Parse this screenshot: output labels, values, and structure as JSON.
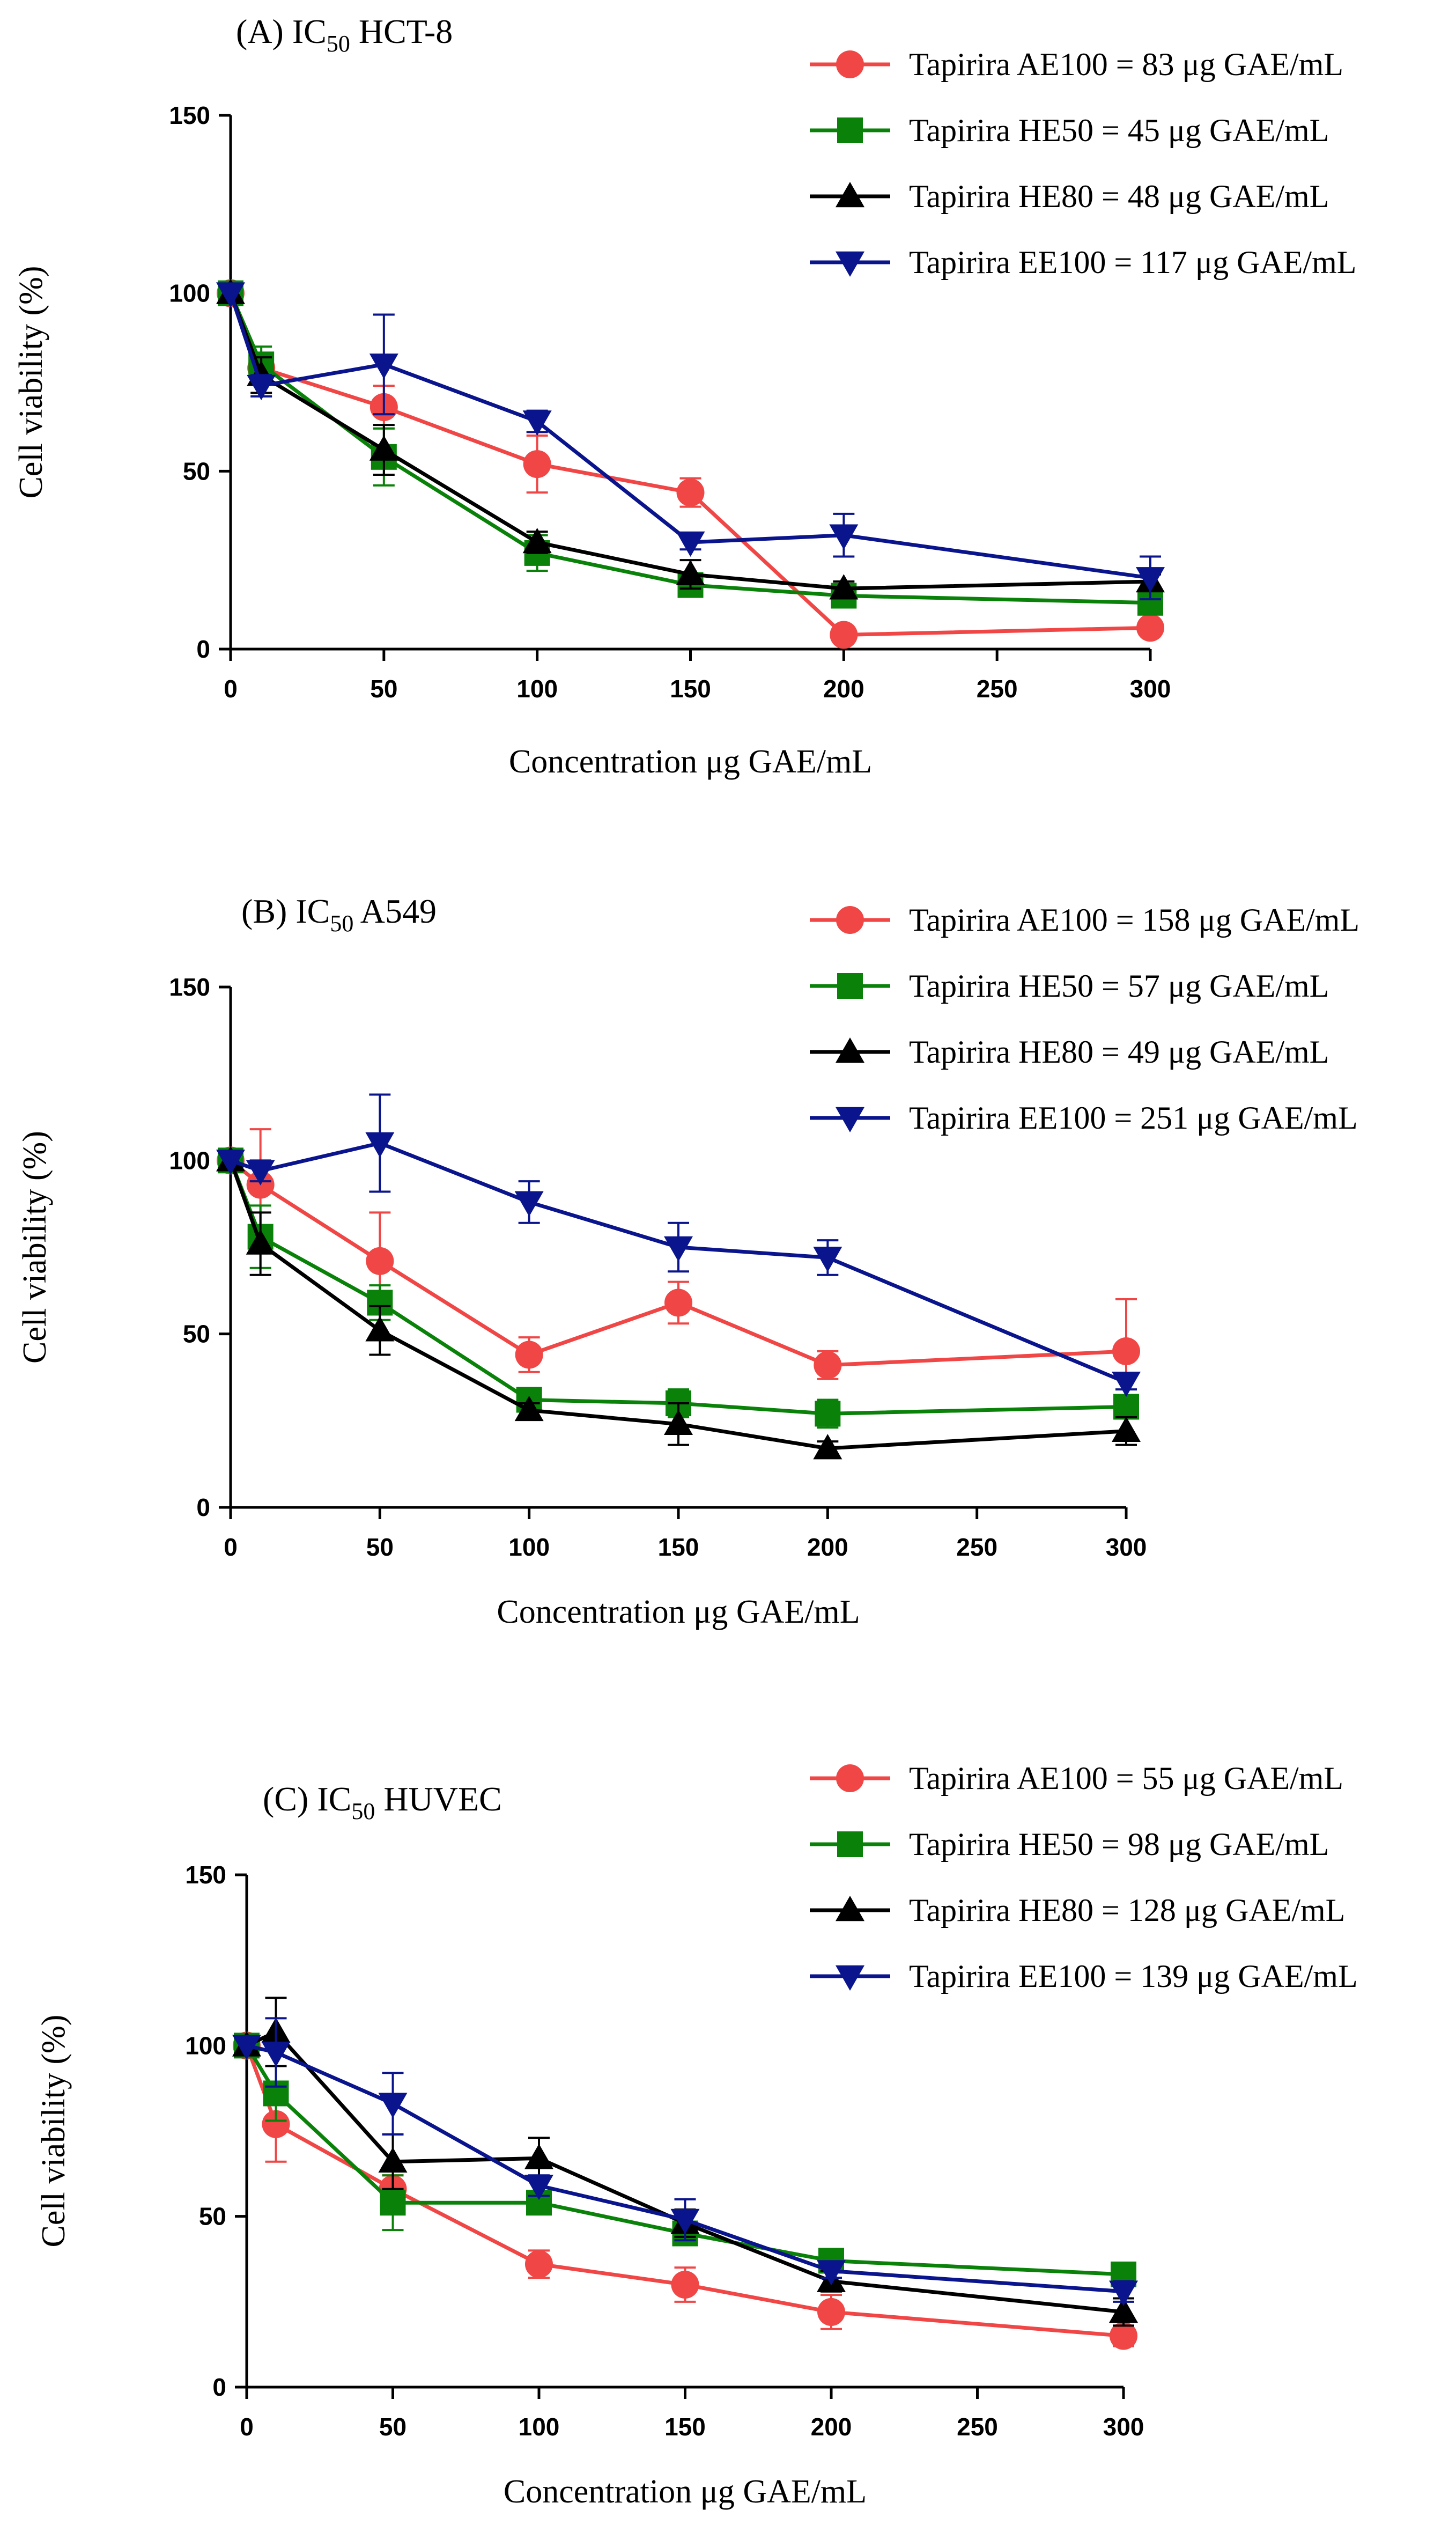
{
  "chart_data": [
    {
      "type": "line",
      "panel_label": "(A) IC",
      "title_sub": "50",
      "title_rest": " HCT-8",
      "xlabel": "Concentration μg GAE/mL",
      "ylabel": "Cell viability (%)",
      "x_ticks": [
        0,
        50,
        100,
        150,
        200,
        250,
        300
      ],
      "y_ticks": [
        0,
        50,
        100,
        150
      ],
      "xlim": [
        0,
        300
      ],
      "ylim": [
        0,
        150
      ],
      "series": [
        {
          "name": "Tapirira AE100 = 83 μg GAE/mL",
          "color": "#f04646",
          "marker": "circle",
          "x": [
            0,
            10,
            50,
            100,
            150,
            200,
            300
          ],
          "y": [
            100,
            79,
            68,
            52,
            44,
            4,
            6
          ],
          "err": [
            0,
            4,
            6,
            8,
            4,
            0,
            0
          ]
        },
        {
          "name": "Tapirira HE50 = 45 μg GAE/mL",
          "color": "#0a820a",
          "marker": "square",
          "x": [
            0,
            10,
            50,
            100,
            150,
            200,
            300
          ],
          "y": [
            100,
            80,
            54,
            27,
            18,
            15,
            13
          ],
          "err": [
            0,
            5,
            8,
            5,
            2,
            2,
            2
          ]
        },
        {
          "name": "Tapirira HE80 = 48 μg GAE/mL",
          "color": "#000000",
          "marker": "triangle-up",
          "x": [
            0,
            10,
            50,
            100,
            150,
            200,
            300
          ],
          "y": [
            100,
            77,
            56,
            30,
            21,
            17,
            19
          ],
          "err": [
            0,
            5,
            7,
            3,
            4,
            2,
            2
          ]
        },
        {
          "name": "Tapirira EE100 = 117 μg GAE/mL",
          "color": "#0a148c",
          "marker": "triangle-down",
          "x": [
            0,
            10,
            50,
            100,
            150,
            200,
            300
          ],
          "y": [
            100,
            74,
            80,
            64,
            30,
            32,
            20
          ],
          "err": [
            0,
            3,
            14,
            3,
            2,
            6,
            6
          ]
        }
      ]
    },
    {
      "type": "line",
      "panel_label": "(B) IC",
      "title_sub": "50",
      "title_rest": " A549",
      "xlabel": "Concentration μg GAE/mL",
      "ylabel": "Cell viability (%)",
      "x_ticks": [
        0,
        50,
        100,
        150,
        200,
        250,
        300
      ],
      "y_ticks": [
        0,
        50,
        100,
        150
      ],
      "xlim": [
        0,
        300
      ],
      "ylim": [
        0,
        150
      ],
      "series": [
        {
          "name": "Tapirira AE100 = 158 μg GAE/mL",
          "color": "#f04646",
          "marker": "circle",
          "x": [
            0,
            10,
            50,
            100,
            150,
            200,
            300
          ],
          "y": [
            100,
            93,
            71,
            44,
            59,
            41,
            45
          ],
          "err": [
            0,
            16,
            14,
            5,
            6,
            4,
            15
          ]
        },
        {
          "name": "Tapirira HE50 = 57 μg GAE/mL",
          "color": "#0a820a",
          "marker": "square",
          "x": [
            0,
            10,
            50,
            100,
            150,
            200,
            300
          ],
          "y": [
            100,
            78,
            59,
            31,
            30,
            27,
            29
          ],
          "err": [
            0,
            9,
            5,
            3,
            4,
            4,
            2
          ]
        },
        {
          "name": "Tapirira HE80 =  49 μg GAE/mL",
          "color": "#000000",
          "marker": "triangle-up",
          "x": [
            0,
            10,
            50,
            100,
            150,
            200,
            300
          ],
          "y": [
            100,
            76,
            51,
            28,
            24,
            17,
            22
          ],
          "err": [
            0,
            9,
            7,
            2,
            6,
            2,
            4
          ]
        },
        {
          "name": "Tapirira EE100 = 251 μg GAE/mL",
          "color": "#0a148c",
          "marker": "triangle-down",
          "x": [
            0,
            10,
            50,
            100,
            150,
            200,
            300
          ],
          "y": [
            100,
            97,
            105,
            88,
            75,
            72,
            36
          ],
          "err": [
            0,
            3,
            14,
            6,
            7,
            5,
            2
          ]
        }
      ]
    },
    {
      "type": "line",
      "panel_label": "(C) IC",
      "title_sub": "50",
      "title_rest": " HUVEC",
      "xlabel": "Concentration μg GAE/mL",
      "ylabel": "Cell viability (%)",
      "x_ticks": [
        0,
        50,
        100,
        150,
        200,
        250,
        300
      ],
      "y_ticks": [
        0,
        50,
        100,
        150
      ],
      "xlim": [
        0,
        300
      ],
      "ylim": [
        0,
        150
      ],
      "series": [
        {
          "name": "Tapirira AE100 = 55 μg GAE/mL",
          "color": "#f04646",
          "marker": "circle",
          "x": [
            0,
            10,
            50,
            100,
            150,
            200,
            300
          ],
          "y": [
            100,
            77,
            58,
            36,
            30,
            22,
            15
          ],
          "err": [
            0,
            11,
            4,
            4,
            5,
            5,
            3
          ]
        },
        {
          "name": "Tapirira HE50 = 98 μg GAE/mL",
          "color": "#0a820a",
          "marker": "square",
          "x": [
            0,
            10,
            50,
            100,
            150,
            200,
            300
          ],
          "y": [
            100,
            86,
            54,
            54,
            45,
            37,
            33
          ],
          "err": [
            0,
            8,
            8,
            3,
            3,
            2,
            3
          ]
        },
        {
          "name": "Tapirira HE80 =  128 μg GAE/mL",
          "color": "#000000",
          "marker": "triangle-up",
          "x": [
            0,
            10,
            50,
            100,
            150,
            200,
            300
          ],
          "y": [
            100,
            104,
            66,
            67,
            48,
            31,
            22
          ],
          "err": [
            0,
            10,
            8,
            6,
            4,
            3,
            4
          ]
        },
        {
          "name": "Tapirira EE100 = 139 μg GAE/mL",
          "color": "#0a148c",
          "marker": "triangle-down",
          "x": [
            0,
            10,
            50,
            100,
            150,
            200,
            300
          ],
          "y": [
            100,
            98,
            83,
            59,
            49,
            34,
            28
          ],
          "err": [
            0,
            10,
            9,
            3,
            6,
            2,
            3
          ]
        }
      ]
    }
  ]
}
